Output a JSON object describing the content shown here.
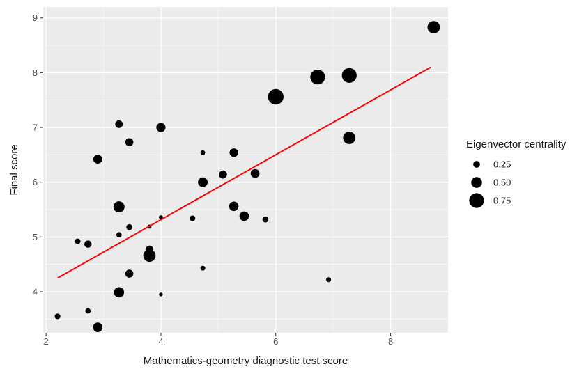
{
  "chart_data": {
    "type": "scatter",
    "title": "",
    "xlabel": "Mathematics-geometry diagnostic test score",
    "ylabel": "Final score",
    "xlim": [
      1.95,
      9.0
    ],
    "ylim": [
      3.25,
      9.2
    ],
    "x_ticks": [
      2,
      4,
      6,
      8
    ],
    "x_tick_labels": [
      "2",
      "4",
      "6",
      "8"
    ],
    "y_ticks": [
      4,
      5,
      6,
      7,
      8,
      9
    ],
    "y_tick_labels": [
      "4",
      "5",
      "6",
      "7",
      "8",
      "9"
    ],
    "grid": true,
    "background_color": "#ebebeb",
    "grid_color": "#ffffff",
    "point_color": "#000000",
    "trend_color": "#ff0000",
    "trend_line": {
      "x": [
        2.2,
        8.7
      ],
      "y": [
        4.25,
        8.1
      ]
    },
    "size_legend": {
      "title": "Eigenvector centrality",
      "placement": "right",
      "entries": [
        {
          "label": "0.25",
          "value": 0.25
        },
        {
          "label": "0.50",
          "value": 0.5
        },
        {
          "label": "0.75",
          "value": 0.75
        }
      ]
    },
    "points": [
      {
        "x": 2.2,
        "y": 3.55,
        "size": 0.18
      },
      {
        "x": 2.55,
        "y": 4.92,
        "size": 0.18
      },
      {
        "x": 2.73,
        "y": 4.87,
        "size": 0.28
      },
      {
        "x": 2.73,
        "y": 3.65,
        "size": 0.16
      },
      {
        "x": 2.9,
        "y": 6.42,
        "size": 0.38
      },
      {
        "x": 2.9,
        "y": 3.35,
        "size": 0.42
      },
      {
        "x": 3.27,
        "y": 7.06,
        "size": 0.3
      },
      {
        "x": 3.27,
        "y": 5.55,
        "size": 0.52
      },
      {
        "x": 3.27,
        "y": 5.04,
        "size": 0.16
      },
      {
        "x": 3.27,
        "y": 3.99,
        "size": 0.46
      },
      {
        "x": 3.45,
        "y": 6.73,
        "size": 0.33
      },
      {
        "x": 3.45,
        "y": 5.18,
        "size": 0.2
      },
      {
        "x": 3.45,
        "y": 4.33,
        "size": 0.33
      },
      {
        "x": 3.8,
        "y": 5.19,
        "size": 0.08
      },
      {
        "x": 3.8,
        "y": 4.77,
        "size": 0.32
      },
      {
        "x": 3.8,
        "y": 4.66,
        "size": 0.6
      },
      {
        "x": 4.0,
        "y": 7.0,
        "size": 0.4
      },
      {
        "x": 4.0,
        "y": 5.36,
        "size": 0.08
      },
      {
        "x": 4.0,
        "y": 3.95,
        "size": 0.06
      },
      {
        "x": 4.55,
        "y": 5.34,
        "size": 0.18
      },
      {
        "x": 4.73,
        "y": 6.54,
        "size": 0.12
      },
      {
        "x": 4.73,
        "y": 6.0,
        "size": 0.43
      },
      {
        "x": 4.73,
        "y": 4.43,
        "size": 0.13
      },
      {
        "x": 5.08,
        "y": 6.14,
        "size": 0.33
      },
      {
        "x": 5.27,
        "y": 6.54,
        "size": 0.36
      },
      {
        "x": 5.27,
        "y": 5.56,
        "size": 0.42
      },
      {
        "x": 5.45,
        "y": 5.38,
        "size": 0.42
      },
      {
        "x": 5.64,
        "y": 6.16,
        "size": 0.38
      },
      {
        "x": 5.82,
        "y": 5.32,
        "size": 0.2
      },
      {
        "x": 6.0,
        "y": 7.56,
        "size": 0.8
      },
      {
        "x": 6.73,
        "y": 7.92,
        "size": 0.75
      },
      {
        "x": 6.92,
        "y": 4.22,
        "size": 0.13
      },
      {
        "x": 7.28,
        "y": 7.95,
        "size": 0.75
      },
      {
        "x": 7.28,
        "y": 6.81,
        "size": 0.6
      },
      {
        "x": 8.75,
        "y": 8.83,
        "size": 0.6
      }
    ]
  }
}
